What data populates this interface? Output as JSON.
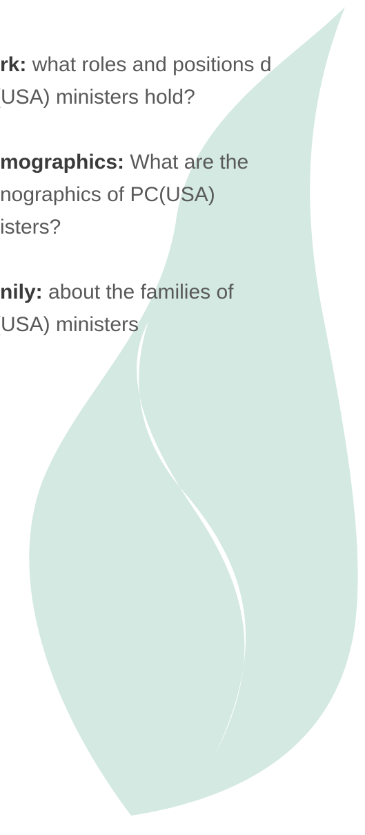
{
  "items": [
    {
      "label": "rk:",
      "lines": [
        "what roles and positions d",
        "(USA) ministers hold?"
      ]
    },
    {
      "label": "mographics:",
      "lines": [
        "What are the",
        "nographics of PC(USA)",
        "isters?"
      ]
    },
    {
      "label": "nily:",
      "lines": [
        "about the families of",
        "(USA) ministers"
      ]
    }
  ]
}
